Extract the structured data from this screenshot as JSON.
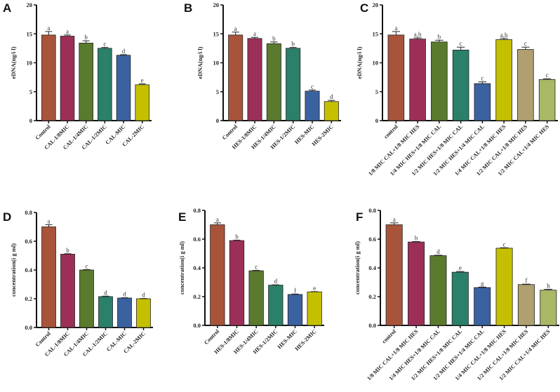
{
  "colors": [
    "#a8543a",
    "#9c2f58",
    "#5a7a2e",
    "#2a8068",
    "#3b62a0",
    "#c4c000",
    "#b0a070",
    "#a8b865"
  ],
  "chart_data": [
    {
      "panel": "A",
      "type": "bar",
      "ylabel": "eDNA(ng/i l)",
      "ylim": [
        0,
        20
      ],
      "yticks": [
        "0",
        "5",
        "10",
        "15",
        "20"
      ],
      "ytick_values": [
        0,
        5,
        10,
        15,
        20
      ],
      "categories": [
        "Control",
        "CAL-1/8MIC",
        "CAL-1/4MIC",
        "CAL-1/2MIC",
        "CAL-MIC",
        "CAL-2MIC"
      ],
      "values": [
        14.8,
        14.6,
        13.4,
        12.5,
        11.3,
        6.2
      ],
      "errors": [
        0.6,
        0.2,
        0.4,
        0.15,
        0.1,
        0.15
      ],
      "letters": [
        "a",
        "a",
        "b",
        "c",
        "d",
        "e"
      ]
    },
    {
      "panel": "B",
      "type": "bar",
      "ylabel": "eDNA(ng/i l)",
      "ylim": [
        0,
        20
      ],
      "yticks": [
        "0",
        "5",
        "10",
        "15",
        "20"
      ],
      "ytick_values": [
        0,
        5,
        10,
        15,
        20
      ],
      "categories": [
        "Control",
        "HES-1/8MIC",
        "HES-1/4MIC",
        "HES-1/2MIC",
        "HES-MIC",
        "HES-2MIC"
      ],
      "values": [
        14.8,
        14.2,
        13.3,
        12.5,
        5.1,
        3.3
      ],
      "errors": [
        0.5,
        0.2,
        0.3,
        0.15,
        0.2,
        0.2
      ],
      "letters": [
        "a",
        "a",
        "b",
        "b",
        "c",
        "d"
      ]
    },
    {
      "panel": "C",
      "type": "bar",
      "ylabel": "eDNA(ng/i l)",
      "ylim": [
        0,
        20
      ],
      "yticks": [
        "0",
        "5",
        "10",
        "15",
        "20"
      ],
      "ytick_values": [
        0,
        5,
        10,
        15,
        20
      ],
      "categories": [
        "control",
        "1/8 MIC CAL+1/8 MIC HES",
        "1/4 MIC HES+1/8 MIC CAL",
        "1/2 MIC HES+1/8 MIC CAL",
        "1/2 MIC HES+1/4 MIC CAL",
        "1/4 MIC CAL+1/8 MIC HES",
        "1/2 MIC CAL+1/8 MIC HES",
        "1/2 MIC CAL+1/4 MIC HES"
      ],
      "values": [
        14.8,
        14.1,
        13.6,
        12.2,
        6.4,
        14.0,
        12.3,
        7.1
      ],
      "errors": [
        0.6,
        0.2,
        0.3,
        0.5,
        0.3,
        0.2,
        0.4,
        0.15
      ],
      "letters": [
        "a",
        "a,b",
        "b",
        "c",
        "c",
        "a,b",
        "c",
        "c"
      ]
    },
    {
      "panel": "D",
      "type": "bar",
      "ylabel": "concentration(i g ml)",
      "ylim": [
        0,
        0.8
      ],
      "yticks": [
        "0.0",
        "0.2",
        "0.4",
        "0.6",
        "0.8"
      ],
      "ytick_values": [
        0,
        0.2,
        0.4,
        0.6,
        0.8
      ],
      "categories": [
        "Control",
        "CAL-1/8MIC",
        "CAL-1/4MIC",
        "CAL-1/2MIC",
        "CAL-MIC",
        "CAL-2MIC"
      ],
      "values": [
        0.7,
        0.51,
        0.4,
        0.215,
        0.205,
        0.2
      ],
      "errors": [
        0.015,
        0.003,
        0.003,
        0.003,
        0.002,
        0.002
      ],
      "letters": [
        "a",
        "b",
        "c",
        "d",
        "d",
        "d"
      ]
    },
    {
      "panel": "E",
      "type": "bar",
      "ylabel": "concentration(i g ml)",
      "ylim": [
        0,
        0.8
      ],
      "yticks": [
        "0.0",
        "0.2",
        "0.4",
        "0.6",
        "0.8"
      ],
      "ytick_values": [
        0,
        0.2,
        0.4,
        0.6,
        0.8
      ],
      "categories": [
        "Control",
        "HES-1/8MIC",
        "HES-1/4MIC",
        "HES-1/2MIC",
        "HES-MIC",
        "HES-2MIC"
      ],
      "values": [
        0.7,
        0.59,
        0.38,
        0.28,
        0.215,
        0.233
      ],
      "errors": [
        0.013,
        0.003,
        0.003,
        0.002,
        0.003,
        0.002
      ],
      "letters": [
        "a",
        "b",
        "c",
        "d",
        "f",
        "e"
      ]
    },
    {
      "panel": "F",
      "type": "bar",
      "ylabel": "concentration(i g ml)",
      "ylim": [
        0,
        0.8
      ],
      "yticks": [
        "0.0",
        "0.2",
        "0.4",
        "0.6",
        "0.8"
      ],
      "ytick_values": [
        0,
        0.2,
        0.4,
        0.6,
        0.8
      ],
      "categories": [
        "control",
        "1/8 MIC CAL+1/8 MIC HES",
        "1/4 MIC HES+1/8 MIC CAL",
        "1/2 MIC HES+1/8 MIC CAL",
        "1/2 MIC HES+1/4 MIC CAL",
        "1/4 MIC CAL+1/8 MIC HES",
        "1/2 MIC CAL+1/8 MIC HES",
        "1/2 MIC CAL+1/4 MIC HES"
      ],
      "values": [
        0.7,
        0.58,
        0.485,
        0.37,
        0.263,
        0.537,
        0.284,
        0.245
      ],
      "errors": [
        0.013,
        0.003,
        0.003,
        0.005,
        0.003,
        0.003,
        0.003,
        0.006
      ],
      "letters": [
        "a",
        "b",
        "d",
        "e",
        "g",
        "c",
        "f",
        "h"
      ]
    }
  ]
}
